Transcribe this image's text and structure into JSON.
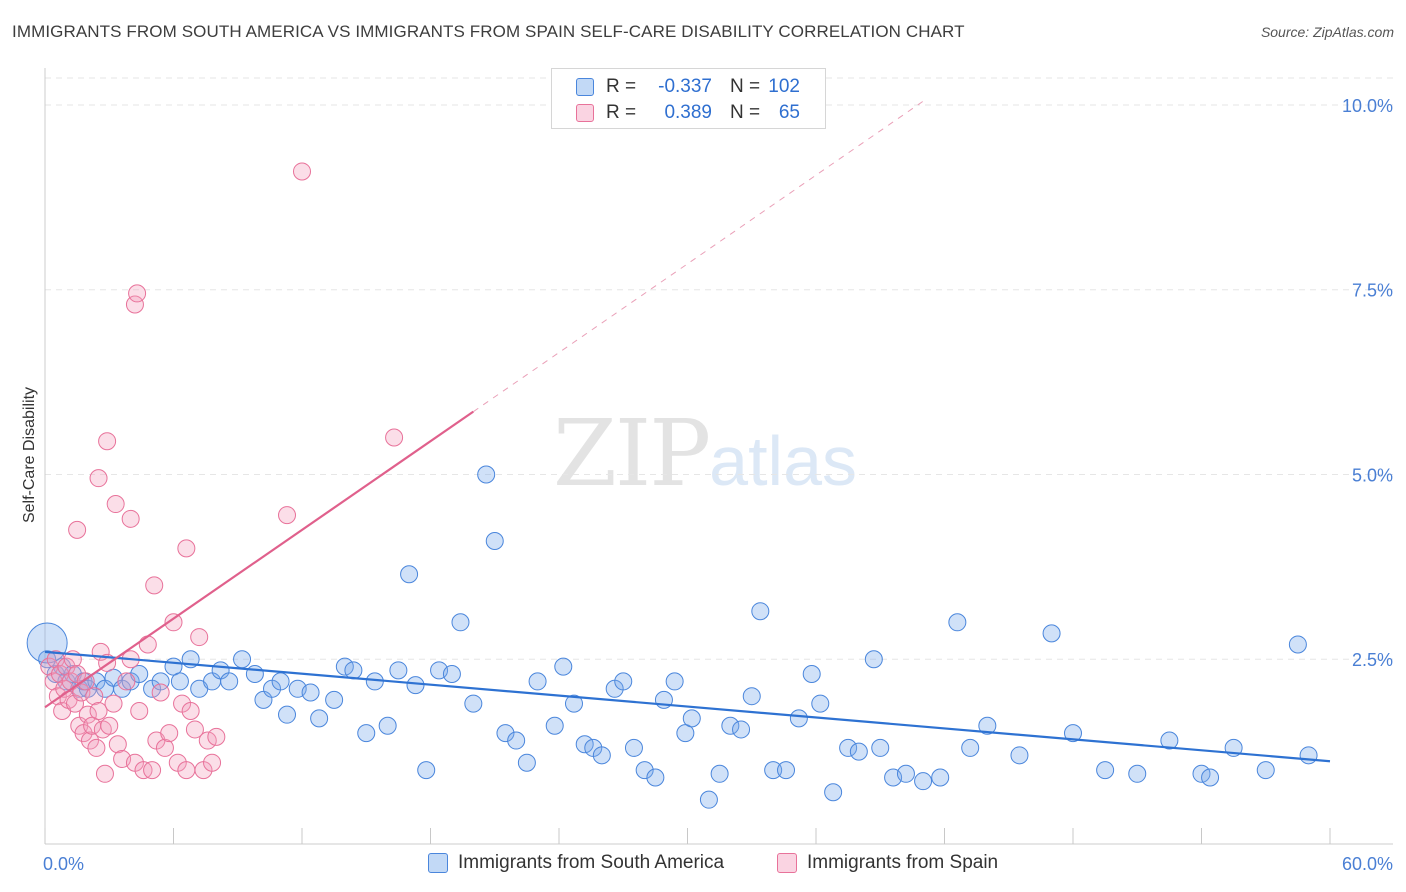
{
  "title": "IMMIGRANTS FROM SOUTH AMERICA VS IMMIGRANTS FROM SPAIN SELF-CARE DISABILITY CORRELATION CHART",
  "source": "Source: ZipAtlas.com",
  "watermark": {
    "zip": "ZIP",
    "atlas": "atlas"
  },
  "colors": {
    "blue": "#4a86dc",
    "blue_fill": "rgba(120,170,235,0.35)",
    "pink": "#e8729a",
    "pink_fill": "rgba(244,160,190,0.35)",
    "tick": "#4a7fd4"
  },
  "legend": {
    "rows": [
      {
        "r_label": "R =",
        "r_value": "-0.337",
        "n_label": "N =",
        "n_value": "102"
      },
      {
        "r_label": "R =",
        "r_value": "0.389",
        "n_label": "N =",
        "n_value": "65"
      }
    ]
  },
  "bottom_legend": [
    "Immigrants from South America",
    "Immigrants from Spain"
  ],
  "chart_data": {
    "type": "scatter",
    "ylabel": "Self-Care Disability",
    "xlim": [
      0,
      60
    ],
    "ylim": [
      0,
      10.5
    ],
    "x_tick_labels": [
      "0.0%",
      "60.0%"
    ],
    "y_ticks": [
      2.5,
      5.0,
      7.5,
      10.0
    ],
    "y_tick_labels": [
      "2.5%",
      "5.0%",
      "7.5%",
      "10.0%"
    ],
    "grid": true,
    "legend_position": "top-center",
    "series": [
      {
        "name": "Immigrants from South America",
        "trend": {
          "x": [
            0,
            60
          ],
          "y": [
            2.6,
            1.12
          ]
        },
        "points": [
          [
            0.1,
            2.5
          ],
          [
            0.5,
            2.3
          ],
          [
            0.8,
            2.4
          ],
          [
            1.0,
            2.2
          ],
          [
            1.3,
            2.3
          ],
          [
            1.6,
            2.1
          ],
          [
            1.8,
            2.2
          ],
          [
            2.0,
            2.1
          ],
          [
            2.4,
            2.2
          ],
          [
            2.8,
            2.1
          ],
          [
            3.2,
            2.25
          ],
          [
            3.6,
            2.1
          ],
          [
            4.0,
            2.2
          ],
          [
            4.4,
            2.3
          ],
          [
            5.0,
            2.1
          ],
          [
            5.4,
            2.2
          ],
          [
            6.0,
            2.4
          ],
          [
            6.3,
            2.2
          ],
          [
            6.8,
            2.5
          ],
          [
            7.2,
            2.1
          ],
          [
            7.8,
            2.2
          ],
          [
            8.2,
            2.35
          ],
          [
            8.6,
            2.2
          ],
          [
            9.2,
            2.5
          ],
          [
            9.8,
            2.3
          ],
          [
            10.2,
            1.95
          ],
          [
            10.6,
            2.1
          ],
          [
            11.0,
            2.2
          ],
          [
            11.3,
            1.75
          ],
          [
            11.8,
            2.1
          ],
          [
            12.4,
            2.05
          ],
          [
            12.8,
            1.7
          ],
          [
            13.5,
            1.95
          ],
          [
            14.0,
            2.4
          ],
          [
            14.4,
            2.35
          ],
          [
            15.0,
            1.5
          ],
          [
            15.4,
            2.2
          ],
          [
            16.0,
            1.6
          ],
          [
            16.5,
            2.35
          ],
          [
            17.0,
            3.65
          ],
          [
            17.3,
            2.15
          ],
          [
            17.8,
            1.0
          ],
          [
            18.4,
            2.35
          ],
          [
            19.0,
            2.3
          ],
          [
            19.4,
            3.0
          ],
          [
            20.0,
            1.9
          ],
          [
            20.6,
            5.0
          ],
          [
            21.0,
            4.1
          ],
          [
            21.5,
            1.5
          ],
          [
            22.0,
            1.4
          ],
          [
            22.5,
            1.1
          ],
          [
            23.0,
            2.2
          ],
          [
            23.8,
            1.6
          ],
          [
            24.2,
            2.4
          ],
          [
            24.7,
            1.9
          ],
          [
            25.2,
            1.35
          ],
          [
            25.6,
            1.3
          ],
          [
            26.0,
            1.2
          ],
          [
            26.6,
            2.1
          ],
          [
            27.0,
            2.2
          ],
          [
            27.5,
            1.3
          ],
          [
            28.0,
            1.0
          ],
          [
            28.5,
            0.9
          ],
          [
            28.9,
            1.95
          ],
          [
            29.4,
            2.2
          ],
          [
            29.9,
            1.5
          ],
          [
            30.2,
            1.7
          ],
          [
            31.0,
            0.6
          ],
          [
            31.5,
            0.95
          ],
          [
            32.0,
            1.6
          ],
          [
            32.5,
            1.55
          ],
          [
            33.0,
            2.0
          ],
          [
            33.4,
            3.15
          ],
          [
            34.0,
            1.0
          ],
          [
            34.6,
            1.0
          ],
          [
            35.2,
            1.7
          ],
          [
            35.8,
            2.3
          ],
          [
            36.2,
            1.9
          ],
          [
            36.8,
            0.7
          ],
          [
            37.5,
            1.3
          ],
          [
            38.0,
            1.25
          ],
          [
            38.7,
            2.5
          ],
          [
            39.0,
            1.3
          ],
          [
            39.6,
            0.9
          ],
          [
            40.2,
            0.95
          ],
          [
            41.0,
            0.85
          ],
          [
            41.8,
            0.9
          ],
          [
            42.6,
            3.0
          ],
          [
            43.2,
            1.3
          ],
          [
            44.0,
            1.6
          ],
          [
            45.5,
            1.2
          ],
          [
            47.0,
            2.85
          ],
          [
            48.0,
            1.5
          ],
          [
            49.5,
            1.0
          ],
          [
            51.0,
            0.95
          ],
          [
            52.5,
            1.4
          ],
          [
            54.0,
            0.95
          ],
          [
            54.4,
            0.9
          ],
          [
            55.5,
            1.3
          ],
          [
            57.0,
            1.0
          ],
          [
            58.5,
            2.7
          ],
          [
            59.0,
            1.2
          ]
        ]
      },
      {
        "name": "Immigrants from Spain",
        "trend": {
          "x": [
            0,
            20
          ],
          "y": [
            1.85,
            5.85
          ],
          "dashed_to": {
            "x": 41,
            "y": 10.05
          }
        },
        "points": [
          [
            0.2,
            2.4
          ],
          [
            0.4,
            2.2
          ],
          [
            0.5,
            2.5
          ],
          [
            0.6,
            2.0
          ],
          [
            0.7,
            2.3
          ],
          [
            0.8,
            1.8
          ],
          [
            0.9,
            2.1
          ],
          [
            1.0,
            2.4
          ],
          [
            1.1,
            1.95
          ],
          [
            1.2,
            2.2
          ],
          [
            1.3,
            2.5
          ],
          [
            1.4,
            1.9
          ],
          [
            1.5,
            2.3
          ],
          [
            1.6,
            1.6
          ],
          [
            1.7,
            2.05
          ],
          [
            1.8,
            1.5
          ],
          [
            1.9,
            2.2
          ],
          [
            2.0,
            1.75
          ],
          [
            2.1,
            1.4
          ],
          [
            2.2,
            1.6
          ],
          [
            2.3,
            2.0
          ],
          [
            2.4,
            1.3
          ],
          [
            2.5,
            1.8
          ],
          [
            2.6,
            2.6
          ],
          [
            2.7,
            1.55
          ],
          [
            2.8,
            0.95
          ],
          [
            2.9,
            2.45
          ],
          [
            3.0,
            1.6
          ],
          [
            3.2,
            1.9
          ],
          [
            3.4,
            1.35
          ],
          [
            3.6,
            1.15
          ],
          [
            3.8,
            2.2
          ],
          [
            4.0,
            2.5
          ],
          [
            4.2,
            1.1
          ],
          [
            4.4,
            1.8
          ],
          [
            4.6,
            1.0
          ],
          [
            4.8,
            2.7
          ],
          [
            5.0,
            1.0
          ],
          [
            5.2,
            1.4
          ],
          [
            5.4,
            2.05
          ],
          [
            5.6,
            1.3
          ],
          [
            5.8,
            1.5
          ],
          [
            6.0,
            3.0
          ],
          [
            6.2,
            1.1
          ],
          [
            6.4,
            1.9
          ],
          [
            6.6,
            1.0
          ],
          [
            6.8,
            1.8
          ],
          [
            7.0,
            1.55
          ],
          [
            7.2,
            2.8
          ],
          [
            7.4,
            1.0
          ],
          [
            7.6,
            1.4
          ],
          [
            7.8,
            1.1
          ],
          [
            8.0,
            1.45
          ],
          [
            1.5,
            4.25
          ],
          [
            2.5,
            4.95
          ],
          [
            3.3,
            4.6
          ],
          [
            2.9,
            5.45
          ],
          [
            4.0,
            4.4
          ],
          [
            4.2,
            7.3
          ],
          [
            4.3,
            7.45
          ],
          [
            5.1,
            3.5
          ],
          [
            6.6,
            4.0
          ],
          [
            11.3,
            4.45
          ],
          [
            12.0,
            9.1
          ],
          [
            16.3,
            5.5
          ]
        ]
      }
    ]
  }
}
